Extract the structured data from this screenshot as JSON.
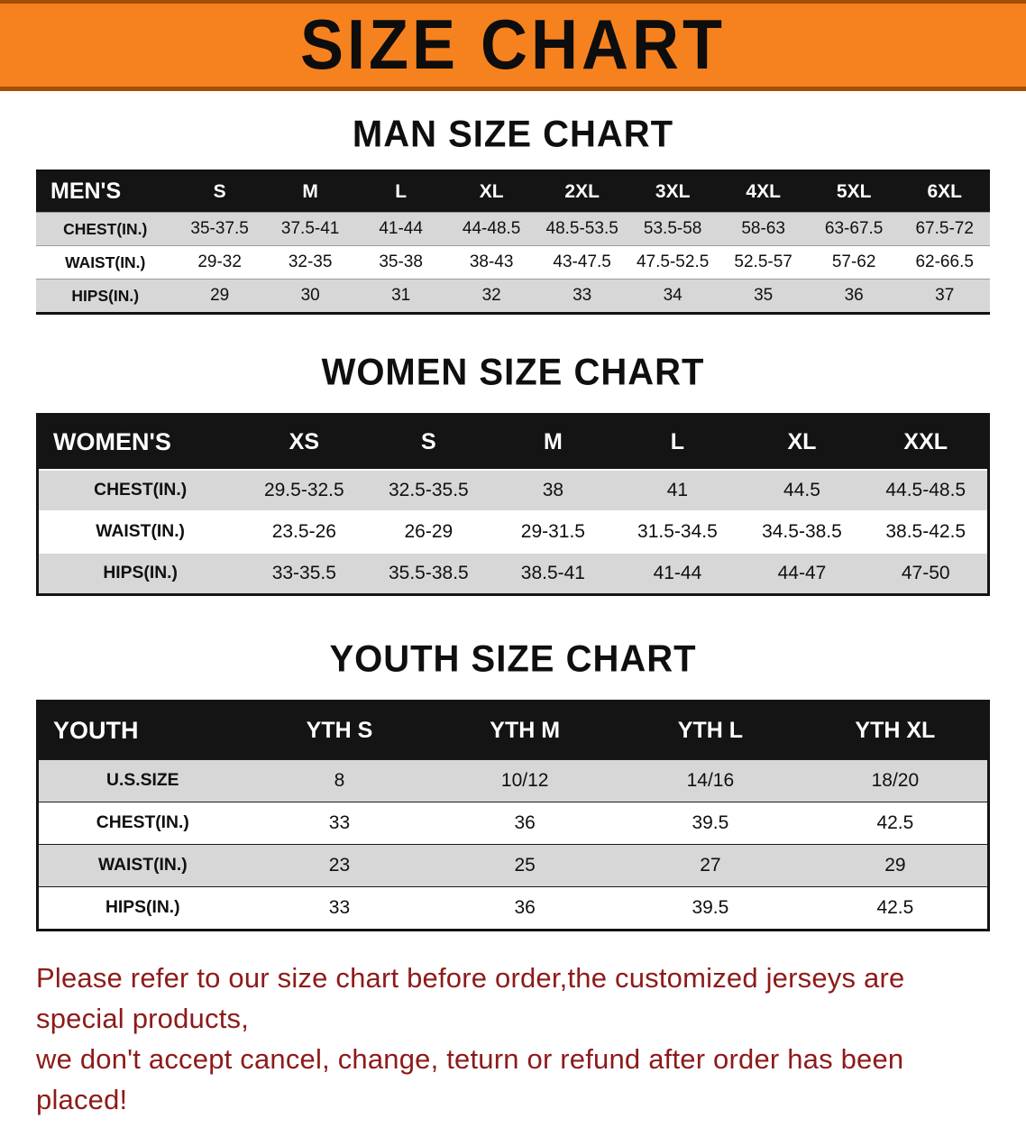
{
  "banner": {
    "title": "SIZE CHART"
  },
  "sections": [
    {
      "heading": "MAN SIZE CHART",
      "table": {
        "header": [
          "MEN'S",
          "S",
          "M",
          "L",
          "XL",
          "2XL",
          "3XL",
          "4XL",
          "5XL",
          "6XL"
        ],
        "rows": [
          [
            "CHEST(IN.)",
            "35-37.5",
            "37.5-41",
            "41-44",
            "44-48.5",
            "48.5-53.5",
            "53.5-58",
            "58-63",
            "63-67.5",
            "67.5-72"
          ],
          [
            "WAIST(IN.)",
            "29-32",
            "32-35",
            "35-38",
            "38-43",
            "43-47.5",
            "47.5-52.5",
            "52.5-57",
            "57-62",
            "62-66.5"
          ],
          [
            "HIPS(IN.)",
            "29",
            "30",
            "31",
            "32",
            "33",
            "34",
            "35",
            "36",
            "37"
          ]
        ]
      }
    },
    {
      "heading": "WOMEN SIZE CHART",
      "table": {
        "header": [
          "WOMEN'S",
          "XS",
          "S",
          "M",
          "L",
          "XL",
          "XXL"
        ],
        "rows": [
          [
            "CHEST(IN.)",
            "29.5-32.5",
            "32.5-35.5",
            "38",
            "41",
            "44.5",
            "44.5-48.5"
          ],
          [
            "WAIST(IN.)",
            "23.5-26",
            "26-29",
            "29-31.5",
            "31.5-34.5",
            "34.5-38.5",
            "38.5-42.5"
          ],
          [
            "HIPS(IN.)",
            "33-35.5",
            "35.5-38.5",
            "38.5-41",
            "41-44",
            "44-47",
            "47-50"
          ]
        ]
      }
    },
    {
      "heading": "YOUTH SIZE CHART",
      "table": {
        "header": [
          "YOUTH",
          "YTH S",
          "YTH M",
          "YTH L",
          "YTH XL"
        ],
        "rows": [
          [
            "U.S.SIZE",
            "8",
            "10/12",
            "14/16",
            "18/20"
          ],
          [
            "CHEST(IN.)",
            "33",
            "36",
            "39.5",
            "42.5"
          ],
          [
            "WAIST(IN.)",
            "23",
            "25",
            "27",
            "29"
          ],
          [
            "HIPS(IN.)",
            "33",
            "36",
            "39.5",
            "42.5"
          ]
        ]
      }
    }
  ],
  "disclaimer": {
    "line1": "Please refer to our size chart before order,the customized jerseys are special products,",
    "line2": "we don't accept cancel, change, teturn or refund after order has been placed!"
  },
  "colors": {
    "banner_bg": "#f6821f",
    "table_header_bg": "#141414",
    "row_alt_bg": "#d7d7d7",
    "disclaimer_text": "#8e1a1a"
  }
}
